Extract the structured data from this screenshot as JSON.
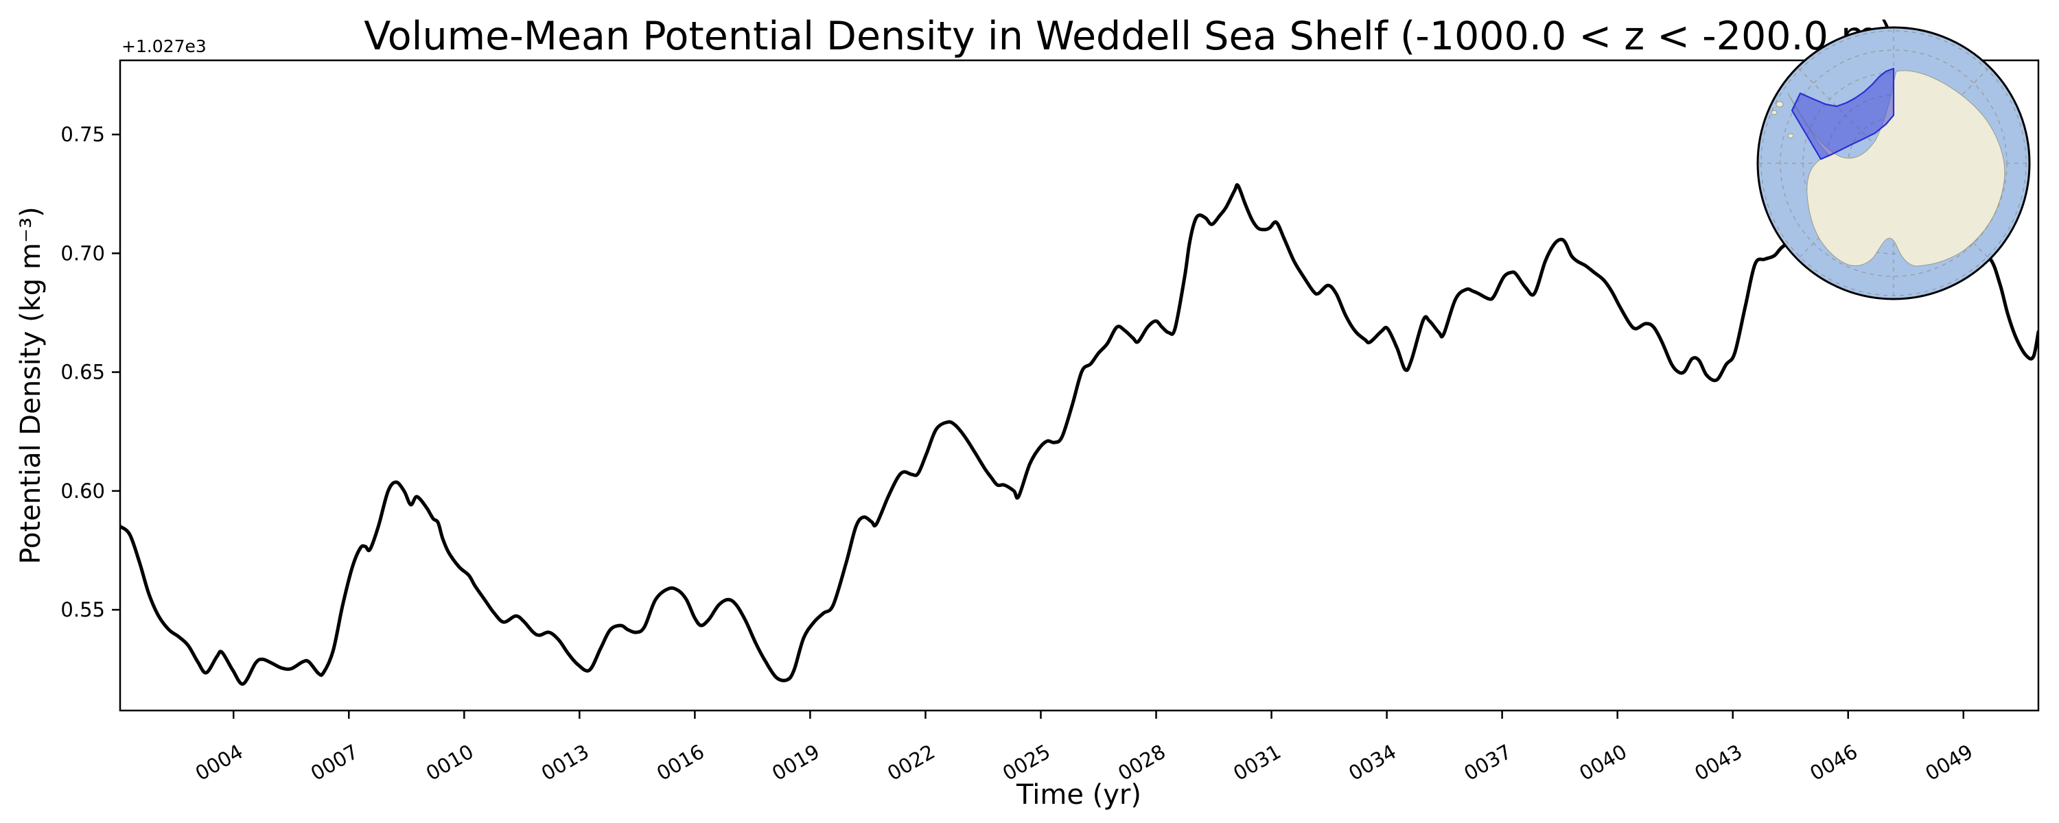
{
  "title": "Volume-Mean Potential Density in Weddell Sea Shelf (-1000.0 < z < -200.0 m)",
  "chart_data": {
    "type": "line",
    "title": "Volume-Mean Potential Density in Weddell Sea Shelf (-1000.0 < z < -200.0 m)",
    "xlabel": "Time (yr)",
    "ylabel": "Potential Density (kg m⁻³)",
    "y_offset": "+1.027e3",
    "xlim": [
      1.05,
      50.95
    ],
    "ylim": [
      0.5076,
      0.7812
    ],
    "grid": false,
    "legend": "none",
    "x_ticks": [
      {
        "year": 4,
        "label": "0004"
      },
      {
        "year": 7,
        "label": "0007"
      },
      {
        "year": 10,
        "label": "0010"
      },
      {
        "year": 13,
        "label": "0013"
      },
      {
        "year": 16,
        "label": "0016"
      },
      {
        "year": 19,
        "label": "0019"
      },
      {
        "year": 22,
        "label": "0022"
      },
      {
        "year": 25,
        "label": "0025"
      },
      {
        "year": 28,
        "label": "0028"
      },
      {
        "year": 31,
        "label": "0031"
      },
      {
        "year": 34,
        "label": "0034"
      },
      {
        "year": 37,
        "label": "0037"
      },
      {
        "year": 40,
        "label": "0040"
      },
      {
        "year": 43,
        "label": "0043"
      },
      {
        "year": 46,
        "label": "0046"
      },
      {
        "year": 49,
        "label": "0049"
      }
    ],
    "y_ticks": [
      {
        "value": 0.55,
        "label": "0.55"
      },
      {
        "value": 0.6,
        "label": "0.60"
      },
      {
        "value": 0.65,
        "label": "0.65"
      },
      {
        "value": 0.7,
        "label": "0.70"
      },
      {
        "value": 0.75,
        "label": "0.75"
      }
    ],
    "series": [
      {
        "name": "volume-mean-potential-density",
        "color": "#000000",
        "linewidth": 5,
        "points": [
          [
            1.05,
            0.5851
          ],
          [
            1.3,
            0.5817
          ],
          [
            1.55,
            0.5702
          ],
          [
            1.8,
            0.5566
          ],
          [
            2.05,
            0.5474
          ],
          [
            2.32,
            0.5416
          ],
          [
            2.57,
            0.5387
          ],
          [
            2.82,
            0.535
          ],
          [
            3.07,
            0.5281
          ],
          [
            3.29,
            0.5235
          ],
          [
            3.57,
            0.5304
          ],
          [
            3.7,
            0.5321
          ],
          [
            3.98,
            0.5246
          ],
          [
            4.25,
            0.5188
          ],
          [
            4.57,
            0.5275
          ],
          [
            4.75,
            0.5292
          ],
          [
            5.0,
            0.5275
          ],
          [
            5.25,
            0.5255
          ],
          [
            5.5,
            0.5252
          ],
          [
            5.8,
            0.5281
          ],
          [
            5.96,
            0.5281
          ],
          [
            6.21,
            0.5232
          ],
          [
            6.34,
            0.5235
          ],
          [
            6.59,
            0.5327
          ],
          [
            6.84,
            0.552
          ],
          [
            7.09,
            0.5679
          ],
          [
            7.3,
            0.576
          ],
          [
            7.43,
            0.5766
          ],
          [
            7.55,
            0.5754
          ],
          [
            7.77,
            0.5852
          ],
          [
            8.02,
            0.5999
          ],
          [
            8.23,
            0.6037
          ],
          [
            8.44,
            0.5999
          ],
          [
            8.61,
            0.5942
          ],
          [
            8.77,
            0.5976
          ],
          [
            9.02,
            0.593
          ],
          [
            9.19,
            0.5884
          ],
          [
            9.32,
            0.5867
          ],
          [
            9.44,
            0.58
          ],
          [
            9.6,
            0.574
          ],
          [
            9.87,
            0.568
          ],
          [
            10.12,
            0.5645
          ],
          [
            10.28,
            0.5601
          ],
          [
            10.53,
            0.5543
          ],
          [
            10.78,
            0.5486
          ],
          [
            11.03,
            0.5448
          ],
          [
            11.34,
            0.5474
          ],
          [
            11.55,
            0.5451
          ],
          [
            11.8,
            0.5405
          ],
          [
            11.96,
            0.5393
          ],
          [
            12.21,
            0.5405
          ],
          [
            12.46,
            0.5373
          ],
          [
            12.71,
            0.5315
          ],
          [
            12.96,
            0.5269
          ],
          [
            13.26,
            0.5246
          ],
          [
            13.55,
            0.5338
          ],
          [
            13.8,
            0.5416
          ],
          [
            14.07,
            0.5434
          ],
          [
            14.26,
            0.5416
          ],
          [
            14.48,
            0.5405
          ],
          [
            14.69,
            0.5428
          ],
          [
            14.98,
            0.5543
          ],
          [
            15.32,
            0.5589
          ],
          [
            15.57,
            0.5581
          ],
          [
            15.78,
            0.5543
          ],
          [
            15.99,
            0.5468
          ],
          [
            16.16,
            0.5434
          ],
          [
            16.37,
            0.546
          ],
          [
            16.62,
            0.552
          ],
          [
            16.87,
            0.5543
          ],
          [
            17.08,
            0.552
          ],
          [
            17.33,
            0.5451
          ],
          [
            17.58,
            0.5361
          ],
          [
            17.83,
            0.5285
          ],
          [
            18.12,
            0.5215
          ],
          [
            18.4,
            0.5205
          ],
          [
            18.58,
            0.5246
          ],
          [
            18.83,
            0.5381
          ],
          [
            19.1,
            0.5448
          ],
          [
            19.35,
            0.5486
          ],
          [
            19.6,
            0.552
          ],
          [
            19.94,
            0.57
          ],
          [
            20.19,
            0.585
          ],
          [
            20.39,
            0.589
          ],
          [
            20.6,
            0.587
          ],
          [
            20.72,
            0.586
          ],
          [
            21.03,
            0.5976
          ],
          [
            21.28,
            0.6057
          ],
          [
            21.44,
            0.608
          ],
          [
            21.65,
            0.6069
          ],
          [
            21.81,
            0.6074
          ],
          [
            22.03,
            0.6158
          ],
          [
            22.28,
            0.626
          ],
          [
            22.58,
            0.629
          ],
          [
            22.78,
            0.6276
          ],
          [
            23.03,
            0.6227
          ],
          [
            23.3,
            0.6158
          ],
          [
            23.55,
            0.6092
          ],
          [
            23.71,
            0.6057
          ],
          [
            23.87,
            0.6025
          ],
          [
            24.05,
            0.6025
          ],
          [
            24.3,
            0.6
          ],
          [
            24.42,
            0.5976
          ],
          [
            24.71,
            0.6112
          ],
          [
            24.96,
            0.618
          ],
          [
            25.17,
            0.621
          ],
          [
            25.35,
            0.6204
          ],
          [
            25.55,
            0.6227
          ],
          [
            25.82,
            0.6363
          ],
          [
            26.07,
            0.6504
          ],
          [
            26.3,
            0.6535
          ],
          [
            26.5,
            0.658
          ],
          [
            26.73,
            0.662
          ],
          [
            26.98,
            0.669
          ],
          [
            27.19,
            0.6674
          ],
          [
            27.4,
            0.6643
          ],
          [
            27.53,
            0.6628
          ],
          [
            27.78,
            0.669
          ],
          [
            27.99,
            0.6715
          ],
          [
            28.15,
            0.669
          ],
          [
            28.33,
            0.6666
          ],
          [
            28.49,
            0.6683
          ],
          [
            28.74,
            0.69
          ],
          [
            28.86,
            0.7035
          ],
          [
            28.99,
            0.7128
          ],
          [
            29.11,
            0.716
          ],
          [
            29.29,
            0.7148
          ],
          [
            29.45,
            0.7122
          ],
          [
            29.66,
            0.716
          ],
          [
            29.82,
            0.7194
          ],
          [
            30.04,
            0.7264
          ],
          [
            30.13,
            0.7285
          ],
          [
            30.32,
            0.7206
          ],
          [
            30.5,
            0.7139
          ],
          [
            30.66,
            0.7105
          ],
          [
            30.84,
            0.71
          ],
          [
            30.96,
            0.7108
          ],
          [
            31.13,
            0.713
          ],
          [
            31.34,
            0.7058
          ],
          [
            31.59,
            0.6966
          ],
          [
            31.84,
            0.69
          ],
          [
            32.09,
            0.684
          ],
          [
            32.22,
            0.6831
          ],
          [
            32.47,
            0.6865
          ],
          [
            32.68,
            0.6831
          ],
          [
            32.93,
            0.6738
          ],
          [
            33.18,
            0.6672
          ],
          [
            33.43,
            0.6637
          ],
          [
            33.56,
            0.6626
          ],
          [
            33.86,
            0.6672
          ],
          [
            34.02,
            0.6683
          ],
          [
            34.27,
            0.66
          ],
          [
            34.48,
            0.651
          ],
          [
            34.64,
            0.655
          ],
          [
            34.95,
            0.672
          ],
          [
            35.11,
            0.6715
          ],
          [
            35.36,
            0.6666
          ],
          [
            35.48,
            0.666
          ],
          [
            35.79,
            0.6808
          ],
          [
            36.07,
            0.6848
          ],
          [
            36.25,
            0.684
          ],
          [
            36.38,
            0.6831
          ],
          [
            36.66,
            0.6808
          ],
          [
            36.79,
            0.682
          ],
          [
            37.04,
            0.69
          ],
          [
            37.25,
            0.692
          ],
          [
            37.37,
            0.6911
          ],
          [
            37.62,
            0.6854
          ],
          [
            37.84,
            0.6831
          ],
          [
            38.12,
            0.6966
          ],
          [
            38.34,
            0.7035
          ],
          [
            38.51,
            0.7058
          ],
          [
            38.64,
            0.7046
          ],
          [
            38.8,
            0.699
          ],
          [
            38.96,
            0.6966
          ],
          [
            39.17,
            0.6948
          ],
          [
            39.39,
            0.692
          ],
          [
            39.64,
            0.6888
          ],
          [
            39.85,
            0.684
          ],
          [
            40.07,
            0.6773
          ],
          [
            40.32,
            0.6704
          ],
          [
            40.48,
            0.6683
          ],
          [
            40.73,
            0.6704
          ],
          [
            40.94,
            0.669
          ],
          [
            41.16,
            0.6626
          ],
          [
            41.41,
            0.6533
          ],
          [
            41.6,
            0.6499
          ],
          [
            41.75,
            0.6504
          ],
          [
            41.94,
            0.6556
          ],
          [
            42.12,
            0.655
          ],
          [
            42.32,
            0.6487
          ],
          [
            42.58,
            0.6467
          ],
          [
            42.83,
            0.6533
          ],
          [
            43.05,
            0.658
          ],
          [
            43.33,
            0.678
          ],
          [
            43.58,
            0.6955
          ],
          [
            43.83,
            0.6975
          ],
          [
            44.08,
            0.699
          ],
          [
            44.29,
            0.7027
          ],
          [
            44.7,
            0.707
          ],
          [
            45.1,
            0.7095
          ],
          [
            45.5,
            0.7075
          ],
          [
            45.9,
            0.709
          ],
          [
            46.3,
            0.7045
          ],
          [
            46.8,
            0.706
          ],
          [
            47.3,
            0.702
          ],
          [
            47.8,
            0.7045
          ],
          [
            48.3,
            0.7025
          ],
          [
            48.8,
            0.7035
          ],
          [
            49.3,
            0.7
          ],
          [
            49.7,
            0.6975
          ],
          [
            49.95,
            0.687
          ],
          [
            50.16,
            0.674
          ],
          [
            50.38,
            0.664
          ],
          [
            50.63,
            0.657
          ],
          [
            50.82,
            0.6565
          ],
          [
            50.95,
            0.667
          ]
        ]
      }
    ]
  },
  "inset_map": {
    "name": "antarctica-south-polar-inset",
    "highlighted_region": "Weddell Sea Shelf",
    "colors": {
      "ocean": "#a8c3e6",
      "land": "#eeecd8",
      "coast": "#9a9a8c",
      "graticule": "#9a9a9a",
      "region_fill_rgba": "rgba(73,78,216,0.55)",
      "region_edge": "#2b2fd4",
      "border": "#000000"
    }
  }
}
